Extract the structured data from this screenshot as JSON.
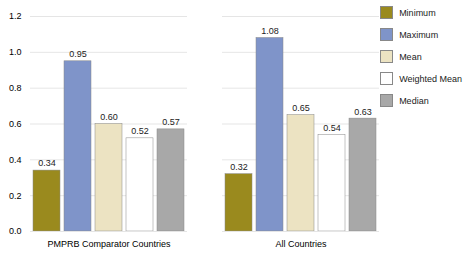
{
  "chart_data": {
    "type": "bar",
    "categories": [
      "PMPRB Comparator Countries",
      "All Countries"
    ],
    "series": [
      {
        "name": "Minimum",
        "color": "#9a8a1e",
        "values": [
          0.34,
          0.32
        ],
        "value_labels": [
          "0.34",
          "0.32"
        ]
      },
      {
        "name": "Maximum",
        "color": "#7f94c9",
        "values": [
          0.95,
          1.08
        ],
        "value_labels": [
          "0.95",
          "1.08"
        ]
      },
      {
        "name": "Mean",
        "color": "#ece3c2",
        "values": [
          0.6,
          0.65
        ],
        "value_labels": [
          "0.60",
          "0.65"
        ]
      },
      {
        "name": "Weighted Mean",
        "color": "#ffffff",
        "values": [
          0.52,
          0.54
        ],
        "value_labels": [
          "0.52",
          "0.54"
        ]
      },
      {
        "name": "Median",
        "color": "#a8a8a8",
        "values": [
          0.57,
          0.63
        ],
        "value_labels": [
          "0.57",
          "0.63"
        ]
      }
    ],
    "ylim": [
      0,
      1.2
    ],
    "yticks": [
      {
        "value": 0,
        "label": "0.0"
      },
      {
        "value": 0.2,
        "label": "0.2"
      },
      {
        "value": 0.4,
        "label": "0.4"
      },
      {
        "value": 0.6,
        "label": "0.6"
      },
      {
        "value": 0.8,
        "label": "0.8"
      },
      {
        "value": 1,
        "label": "1.0"
      },
      {
        "value": 1.2,
        "label": "1.2"
      }
    ],
    "grid": true,
    "legend": "top-right",
    "data_labels": true
  }
}
